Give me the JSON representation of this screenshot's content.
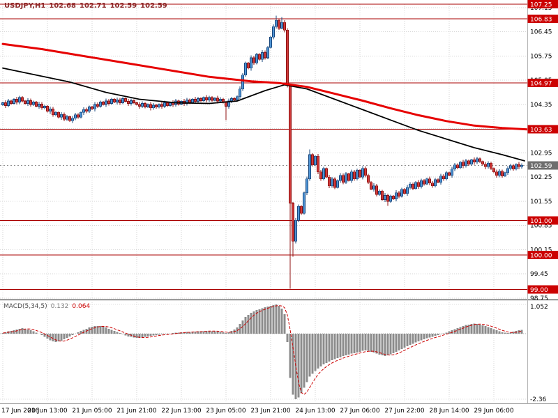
{
  "header": {
    "symbol_period": "USDJPY,H1",
    "open": "102.68",
    "high": "102.71",
    "low": "102.59",
    "close": "102.59"
  },
  "indicator": {
    "label": "MACD(5,34,5)",
    "macd_value": "0.132",
    "signal_value": "0.064"
  },
  "colors": {
    "background": "#ffffff",
    "grid": "#d4d4d4",
    "level_line": "#aa0000",
    "level_badge": "#cc0000",
    "current_badge": "#6e6e6e",
    "bull": "#4f94d4",
    "bull_edge": "#17477e",
    "bear": "#d03a3a",
    "bear_edge": "#8f1010",
    "ma_fast": "#000000",
    "ma_slow": "#e60000",
    "macd_bar": "#8c8c8c",
    "macd_signal": "#cc0000",
    "header_text": "#8b2a2a",
    "axis_text": "#000000"
  },
  "chart_data": {
    "type": "candlestick",
    "title": "USDJPY,H1",
    "timeframe": "H1",
    "x_labels": [
      {
        "bar": 0,
        "label": "17 Jun 2016"
      },
      {
        "bar": 16,
        "label": "20 Jun 13:00"
      },
      {
        "bar": 32,
        "label": "21 Jun 05:00"
      },
      {
        "bar": 48,
        "label": "21 Jun 21:00"
      },
      {
        "bar": 64,
        "label": "22 Jun 13:00"
      },
      {
        "bar": 80,
        "label": "23 Jun 05:00"
      },
      {
        "bar": 96,
        "label": "23 Jun 21:00"
      },
      {
        "bar": 112,
        "label": "24 Jun 13:00"
      },
      {
        "bar": 128,
        "label": "27 Jun 06:00"
      },
      {
        "bar": 144,
        "label": "27 Jun 22:00"
      },
      {
        "bar": 160,
        "label": "28 Jun 14:00"
      },
      {
        "bar": 176,
        "label": "29 Jun 06:00"
      }
    ],
    "price_panel": {
      "axis_max": 107.25,
      "axis_min": 98.75,
      "grid_ticks": [
        107.15,
        106.45,
        105.75,
        105.05,
        104.35,
        103.65,
        102.95,
        102.25,
        101.55,
        100.85,
        100.15,
        99.45,
        98.75
      ],
      "levels": [
        107.25,
        106.83,
        104.97,
        103.63,
        101.0,
        100.0,
        99.0
      ],
      "current_price": 102.59,
      "closes": [
        104.4,
        104.32,
        104.45,
        104.38,
        104.5,
        104.42,
        104.55,
        104.45,
        104.38,
        104.46,
        104.35,
        104.42,
        104.3,
        104.36,
        104.25,
        104.3,
        104.15,
        104.22,
        104.05,
        104.12,
        103.98,
        104.06,
        103.92,
        104.0,
        103.88,
        103.95,
        104.05,
        103.98,
        104.12,
        104.2,
        104.15,
        104.28,
        104.22,
        104.35,
        104.3,
        104.42,
        104.35,
        104.45,
        104.38,
        104.5,
        104.42,
        104.48,
        104.4,
        104.52,
        104.44,
        104.38,
        104.46,
        104.4,
        104.35,
        104.3,
        104.38,
        104.28,
        104.35,
        104.25,
        104.33,
        104.27,
        104.35,
        104.3,
        104.4,
        104.32,
        104.4,
        104.35,
        104.45,
        104.36,
        104.44,
        104.38,
        104.48,
        104.4,
        104.5,
        104.44,
        104.52,
        104.46,
        104.55,
        104.48,
        104.55,
        104.47,
        104.53,
        104.45,
        104.5,
        104.42,
        104.3,
        104.45,
        104.52,
        104.48,
        104.58,
        104.8,
        105.2,
        105.55,
        105.4,
        105.7,
        105.55,
        105.8,
        105.65,
        105.85,
        105.7,
        106.0,
        106.3,
        106.6,
        106.78,
        106.55,
        106.72,
        106.5,
        104.9,
        101.5,
        100.4,
        101.0,
        101.4,
        101.2,
        101.8,
        102.2,
        102.9,
        102.6,
        102.85,
        102.4,
        102.2,
        102.5,
        102.25,
        102.0,
        102.2,
        101.95,
        102.15,
        102.3,
        102.1,
        102.35,
        102.15,
        102.4,
        102.2,
        102.45,
        102.25,
        102.5,
        102.3,
        102.1,
        101.9,
        102.0,
        101.75,
        101.85,
        101.6,
        101.72,
        101.55,
        101.7,
        101.62,
        101.8,
        101.7,
        101.9,
        101.78,
        101.95,
        102.05,
        101.92,
        102.1,
        101.98,
        102.15,
        102.05,
        102.2,
        102.08,
        102.0,
        102.18,
        102.1,
        102.28,
        102.2,
        102.38,
        102.3,
        102.48,
        102.6,
        102.52,
        102.68,
        102.58,
        102.72,
        102.62,
        102.75,
        102.68,
        102.78,
        102.7,
        102.62,
        102.55,
        102.65,
        102.5,
        102.4,
        102.3,
        102.42,
        102.28,
        102.38,
        102.5,
        102.58,
        102.48,
        102.62,
        102.55,
        102.59
      ],
      "wick_overrides": {
        "80": {
          "low": 103.9
        },
        "98": {
          "high": 106.92
        },
        "100": {
          "high": 106.88
        },
        "103": {
          "low": 99.02
        },
        "104": {
          "low": 99.95
        },
        "110": {
          "high": 103.05
        },
        "138": {
          "low": 101.42
        }
      },
      "ma_black": [
        [
          0,
          105.4
        ],
        [
          12,
          105.2
        ],
        [
          24,
          105.0
        ],
        [
          37,
          104.7
        ],
        [
          49,
          104.5
        ],
        [
          62,
          104.4
        ],
        [
          74,
          104.38
        ],
        [
          84,
          104.45
        ],
        [
          94,
          104.75
        ],
        [
          101,
          104.92
        ],
        [
          109,
          104.8
        ],
        [
          119,
          104.5
        ],
        [
          129,
          104.2
        ],
        [
          139,
          103.9
        ],
        [
          149,
          103.6
        ],
        [
          159,
          103.35
        ],
        [
          169,
          103.1
        ],
        [
          179,
          102.9
        ],
        [
          187,
          102.72
        ]
      ],
      "ma_red": [
        [
          0,
          106.1
        ],
        [
          14,
          105.95
        ],
        [
          29,
          105.75
        ],
        [
          44,
          105.55
        ],
        [
          59,
          105.35
        ],
        [
          74,
          105.15
        ],
        [
          89,
          105.02
        ],
        [
          99,
          104.97
        ],
        [
          109,
          104.86
        ],
        [
          119,
          104.66
        ],
        [
          129,
          104.46
        ],
        [
          139,
          104.24
        ],
        [
          149,
          104.04
        ],
        [
          159,
          103.87
        ],
        [
          169,
          103.74
        ],
        [
          179,
          103.67
        ],
        [
          188,
          103.63
        ]
      ]
    },
    "macd_panel": {
      "label": "MACD(5,34,5)",
      "axis_max": 1.052,
      "axis_min": -2.36,
      "max_label": "1.052",
      "min_label": "-2.36",
      "signal_period": 5,
      "values": [
        0.02,
        0.05,
        0.08,
        0.1,
        0.12,
        0.15,
        0.18,
        0.2,
        0.18,
        0.15,
        0.12,
        0.08,
        0.04,
        0.0,
        -0.05,
        -0.12,
        -0.18,
        -0.24,
        -0.28,
        -0.3,
        -0.28,
        -0.25,
        -0.2,
        -0.15,
        -0.1,
        -0.05,
        0.0,
        0.05,
        0.1,
        0.14,
        0.18,
        0.22,
        0.25,
        0.27,
        0.28,
        0.27,
        0.25,
        0.22,
        0.18,
        0.14,
        0.1,
        0.06,
        0.02,
        -0.02,
        -0.06,
        -0.1,
        -0.12,
        -0.14,
        -0.15,
        -0.15,
        -0.14,
        -0.12,
        -0.1,
        -0.08,
        -0.06,
        -0.05,
        -0.04,
        -0.03,
        -0.02,
        -0.01,
        0.0,
        0.02,
        0.03,
        0.04,
        0.05,
        0.05,
        0.06,
        0.06,
        0.07,
        0.07,
        0.08,
        0.08,
        0.09,
        0.1,
        0.1,
        0.09,
        0.08,
        0.07,
        0.06,
        0.05,
        0.02,
        0.05,
        0.1,
        0.15,
        0.22,
        0.35,
        0.48,
        0.6,
        0.68,
        0.75,
        0.8,
        0.85,
        0.88,
        0.92,
        0.95,
        0.98,
        1.0,
        1.03,
        1.05,
        1.0,
        0.9,
        0.7,
        -0.3,
        -1.6,
        -2.2,
        -2.36,
        -2.3,
        -2.15,
        -1.95,
        -1.75,
        -1.55,
        -1.45,
        -1.35,
        -1.25,
        -1.18,
        -1.1,
        -1.05,
        -1.0,
        -0.95,
        -0.92,
        -0.88,
        -0.85,
        -0.8,
        -0.78,
        -0.75,
        -0.72,
        -0.7,
        -0.68,
        -0.65,
        -0.62,
        -0.6,
        -0.62,
        -0.65,
        -0.68,
        -0.72,
        -0.75,
        -0.78,
        -0.8,
        -0.78,
        -0.74,
        -0.7,
        -0.65,
        -0.6,
        -0.55,
        -0.5,
        -0.45,
        -0.4,
        -0.36,
        -0.32,
        -0.28,
        -0.24,
        -0.2,
        -0.17,
        -0.14,
        -0.11,
        -0.08,
        -0.05,
        -0.02,
        0.01,
        0.04,
        0.08,
        0.12,
        0.16,
        0.2,
        0.24,
        0.28,
        0.31,
        0.33,
        0.35,
        0.36,
        0.35,
        0.33,
        0.3,
        0.27,
        0.24,
        0.2,
        0.16,
        0.12,
        0.08,
        0.05,
        0.03,
        0.02,
        0.04,
        0.07,
        0.1,
        0.12,
        0.132
      ]
    }
  }
}
